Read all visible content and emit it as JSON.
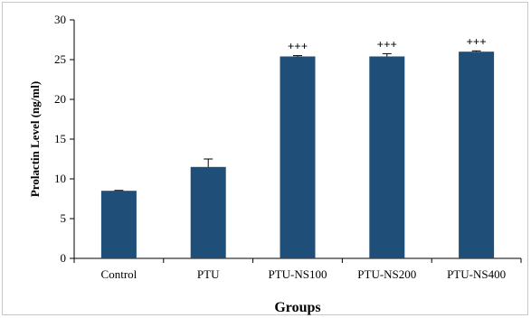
{
  "chart_data": {
    "type": "bar",
    "title": "",
    "xlabel": "Groups",
    "ylabel": "Prolactin Level (ng/ml)",
    "categories": [
      "Control",
      "PTU",
      "PTU-NS100",
      "PTU-NS200",
      "PTU-NS400"
    ],
    "values": [
      8.5,
      11.5,
      25.4,
      25.4,
      26.0
    ],
    "errors": [
      0.05,
      1.0,
      0.1,
      0.35,
      0.1
    ],
    "annotations": [
      "",
      "",
      "+++",
      "+++",
      "+++"
    ],
    "ylim": [
      0,
      30
    ],
    "yticks": [
      "0",
      "5",
      "10",
      "15",
      "20",
      "25",
      "30"
    ],
    "grid": false,
    "legend": "none",
    "bar_color": "#1f4e79"
  }
}
